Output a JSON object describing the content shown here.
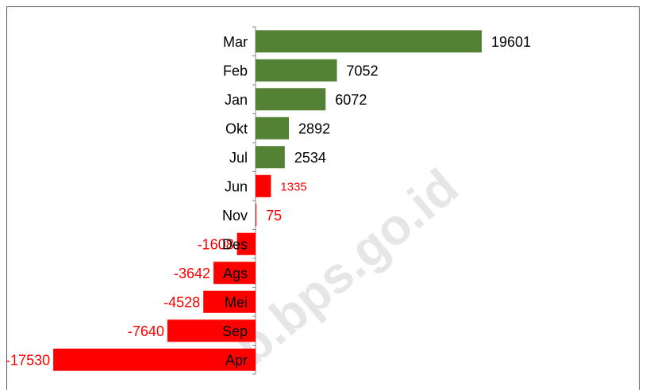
{
  "chart_data": {
    "type": "hbar",
    "categories": [
      "Mar",
      "Feb",
      "Jan",
      "Okt",
      "Jul",
      "Jun",
      "Nov",
      "Des",
      "Ags",
      "Mei",
      "Sep",
      "Apr"
    ],
    "values": [
      19601,
      7052,
      6072,
      2892,
      2534,
      1335,
      75,
      -1608,
      -3642,
      -4528,
      -7640,
      -17530
    ],
    "colors": [
      "#548235",
      "#548235",
      "#548235",
      "#548235",
      "#548235",
      "#ff0000",
      "#ff0000",
      "#ff0000",
      "#ff0000",
      "#ff0000",
      "#ff0000",
      "#ff0000"
    ],
    "label_colors": [
      "#000000",
      "#000000",
      "#000000",
      "#000000",
      "#000000",
      "#ff0000",
      "#ff0000",
      "#ff0000",
      "#ff0000",
      "#ff0000",
      "#ff0000",
      "#ff0000"
    ],
    "watermark": "b.bps.go.id"
  }
}
